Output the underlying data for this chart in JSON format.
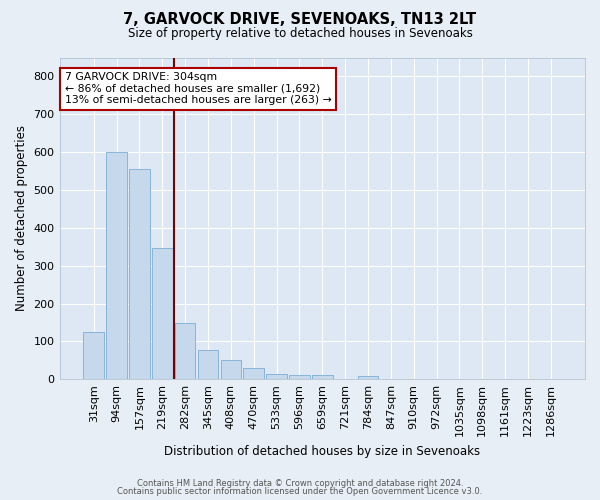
{
  "title": "7, GARVOCK DRIVE, SEVENOAKS, TN13 2LT",
  "subtitle": "Size of property relative to detached houses in Sevenoaks",
  "xlabel": "Distribution of detached houses by size in Sevenoaks",
  "ylabel": "Number of detached properties",
  "bar_color": "#c5d8ec",
  "bar_edge_color": "#7aadd4",
  "background_color": "#dde8f4",
  "grid_color": "#ffffff",
  "fig_background": "#e8eef5",
  "categories": [
    "31sqm",
    "94sqm",
    "157sqm",
    "219sqm",
    "282sqm",
    "345sqm",
    "408sqm",
    "470sqm",
    "533sqm",
    "596sqm",
    "659sqm",
    "721sqm",
    "784sqm",
    "847sqm",
    "910sqm",
    "972sqm",
    "1035sqm",
    "1098sqm",
    "1161sqm",
    "1223sqm",
    "1286sqm"
  ],
  "values": [
    125,
    600,
    555,
    348,
    150,
    78,
    52,
    30,
    14,
    12,
    12,
    0,
    8,
    0,
    0,
    0,
    0,
    0,
    0,
    0,
    0
  ],
  "ylim": [
    0,
    850
  ],
  "yticks": [
    0,
    100,
    200,
    300,
    400,
    500,
    600,
    700,
    800
  ],
  "vline_color": "#7b0000",
  "annotation_box_color": "#aa0000",
  "annotation_text": "7 GARVOCK DRIVE: 304sqm\n← 86% of detached houses are smaller (1,692)\n13% of semi-detached houses are larger (263) →",
  "footer_line1": "Contains HM Land Registry data © Crown copyright and database right 2024.",
  "footer_line2": "Contains public sector information licensed under the Open Government Licence v3.0.",
  "vline_x": 3.5
}
